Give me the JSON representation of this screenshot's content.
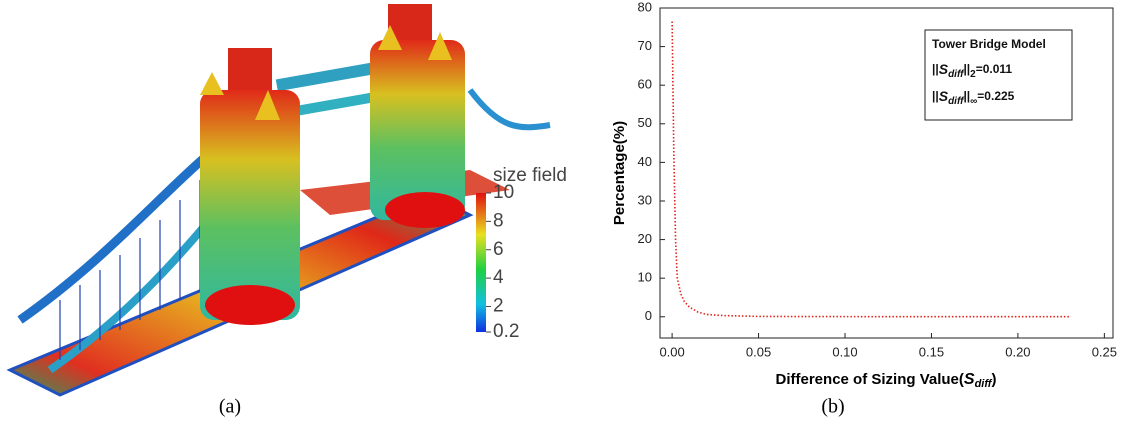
{
  "panel_a": {
    "colorbar_title": "size field",
    "colorbar_range": [
      0.2,
      10
    ],
    "colorbar_ticks": [
      10,
      8,
      6,
      4,
      2,
      0.2
    ],
    "caption": "(a)"
  },
  "chart_data": {
    "type": "line",
    "color": "#e0241b",
    "line_style": "dotted",
    "x": [
      0.0,
      0.001,
      0.002,
      0.003,
      0.004,
      0.005,
      0.007,
      0.01,
      0.015,
      0.02,
      0.03,
      0.05,
      0.08,
      0.12,
      0.16,
      0.2,
      0.23
    ],
    "values": [
      76.5,
      42,
      20,
      10,
      8,
      6,
      4,
      2.5,
      1.2,
      0.6,
      0.3,
      0.1,
      0.05,
      0.03,
      0.02,
      0.02,
      0.02
    ],
    "xlim": [
      -0.007,
      0.255
    ],
    "ylim": [
      -5.5,
      80
    ],
    "xticks": [
      {
        "value": 0,
        "label": "0.00"
      },
      {
        "value": 0.05,
        "label": "0.05"
      },
      {
        "value": 0.1,
        "label": "0.10"
      },
      {
        "value": 0.15,
        "label": "0.15"
      },
      {
        "value": 0.2,
        "label": "0.20"
      },
      {
        "value": 0.25,
        "label": "0.25"
      }
    ],
    "yticks": [
      0,
      10,
      20,
      30,
      40,
      50,
      60,
      70,
      80
    ],
    "x_label": [
      "Difference of Sizing Value(",
      "S",
      "diff",
      ")"
    ],
    "y_label": "Percentage(%)",
    "annotation": {
      "title": "Tower Bridge Model",
      "norm_l2": [
        "||",
        "S",
        "diff",
        "||",
        "2",
        "=0.011"
      ],
      "norm_inf": [
        "||",
        "S",
        "diff",
        "||",
        "∞",
        "=0.225"
      ]
    },
    "caption": "(b)"
  }
}
